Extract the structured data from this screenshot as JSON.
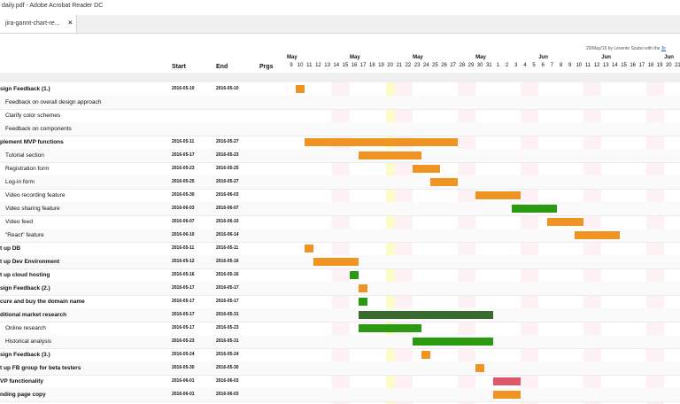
{
  "window": {
    "title": "daily.pdf - Adobe Acrobat Reader DC"
  },
  "tab": {
    "label": "jira-gannt-chart-re...",
    "close": "×"
  },
  "doc_note": {
    "text": "20/May/16 by Levente Szabo with the ",
    "link": "Jir"
  },
  "headers": {
    "start": "Start",
    "end": "End",
    "prgs": "Prgs"
  },
  "months": [
    {
      "label": "May",
      "col": 0
    },
    {
      "label": "May",
      "col": 7
    },
    {
      "label": "May",
      "col": 14
    },
    {
      "label": "May",
      "col": 21
    },
    {
      "label": "Jun",
      "col": 28
    },
    {
      "label": "Jun",
      "col": 35
    },
    {
      "label": "Jun",
      "col": 42
    }
  ],
  "days": [
    "9",
    "10",
    "11",
    "12",
    "13",
    "14",
    "15",
    "16",
    "17",
    "18",
    "19",
    "20",
    "21",
    "22",
    "23",
    "24",
    "25",
    "26",
    "27",
    "28",
    "29",
    "30",
    "31",
    "1",
    "2",
    "3",
    "4",
    "5",
    "6",
    "7",
    "8",
    "9",
    "10",
    "11",
    "12",
    "13",
    "14",
    "15",
    "16",
    "17",
    "18",
    "19",
    "20",
    "21"
  ],
  "weekend_cols": [
    5,
    6,
    12,
    13,
    19,
    20,
    26,
    27,
    33,
    34,
    40,
    41
  ],
  "today_col": 11,
  "colors": {
    "orange": "#ef9422",
    "green": "#2a9a10",
    "darkgreen": "#3a6b2e",
    "red": "#e0566a"
  },
  "tasks": [
    {
      "name": "sign Feedback (1.)",
      "bold": true,
      "start": "2016-05-10",
      "end": "2016-05-10",
      "bar_start": 1,
      "bar_len": 1,
      "color": "orange"
    },
    {
      "name": "Feedback on overall design approach",
      "bold": false,
      "indent": true,
      "start": "",
      "end": "",
      "bar_start": null,
      "bar_len": 0,
      "color": "orange"
    },
    {
      "name": "Clarify color schemes",
      "bold": false,
      "indent": true,
      "start": "",
      "end": "",
      "bar_start": null,
      "bar_len": 0,
      "color": "orange"
    },
    {
      "name": "Feedback on components",
      "bold": false,
      "indent": true,
      "start": "",
      "end": "",
      "bar_start": null,
      "bar_len": 0,
      "color": "orange"
    },
    {
      "name": "plement MVP functions",
      "bold": true,
      "start": "2016-05-11",
      "end": "2016-05-27",
      "bar_start": 2,
      "bar_len": 17,
      "color": "orange"
    },
    {
      "name": "Tutorial section",
      "bold": false,
      "indent": true,
      "start": "2016-05-17",
      "end": "2016-05-23",
      "bar_start": 8,
      "bar_len": 7,
      "color": "orange"
    },
    {
      "name": "Registration form",
      "bold": false,
      "indent": true,
      "start": "2016-05-23",
      "end": "2016-05-25",
      "bar_start": 14,
      "bar_len": 3,
      "color": "orange"
    },
    {
      "name": "Log-in form",
      "bold": false,
      "indent": true,
      "start": "2016-05-25",
      "end": "2016-05-27",
      "bar_start": 16,
      "bar_len": 3,
      "color": "orange"
    },
    {
      "name": "Video recording feature",
      "bold": false,
      "indent": true,
      "start": "2016-05-30",
      "end": "2016-06-03",
      "bar_start": 21,
      "bar_len": 5,
      "color": "orange"
    },
    {
      "name": "Video sharing feature",
      "bold": false,
      "indent": true,
      "start": "2016-06-03",
      "end": "2016-06-07",
      "bar_start": 25,
      "bar_len": 5,
      "color": "green"
    },
    {
      "name": "Video feed",
      "bold": false,
      "indent": true,
      "start": "2016-06-07",
      "end": "2016-06-10",
      "bar_start": 29,
      "bar_len": 4,
      "color": "orange"
    },
    {
      "name": "\"React\" feature",
      "bold": false,
      "indent": true,
      "start": "2016-06-10",
      "end": "2016-06-14",
      "bar_start": 32,
      "bar_len": 5,
      "color": "orange"
    },
    {
      "name": "t up DB",
      "bold": true,
      "start": "2016-05-11",
      "end": "2016-05-11",
      "bar_start": 2,
      "bar_len": 1,
      "color": "orange"
    },
    {
      "name": "t up Dev Environment",
      "bold": true,
      "start": "2016-05-12",
      "end": "2016-05-16",
      "bar_start": 3,
      "bar_len": 5,
      "color": "orange"
    },
    {
      "name": "t up cloud hosting",
      "bold": true,
      "start": "2016-05-16",
      "end": "2016-05-16",
      "bar_start": 7,
      "bar_len": 1,
      "color": "green"
    },
    {
      "name": "sign Feedback (2.)",
      "bold": true,
      "start": "2016-05-17",
      "end": "2016-05-17",
      "bar_start": 8,
      "bar_len": 1,
      "color": "orange"
    },
    {
      "name": "cure and buy the domain name",
      "bold": true,
      "start": "2016-05-17",
      "end": "2016-05-17",
      "bar_start": 8,
      "bar_len": 1,
      "color": "green"
    },
    {
      "name": "ditional market research",
      "bold": true,
      "start": "2016-05-17",
      "end": "2016-05-31",
      "bar_start": 8,
      "bar_len": 15,
      "color": "darkgreen"
    },
    {
      "name": "Online research",
      "bold": false,
      "indent": true,
      "start": "2016-05-17",
      "end": "2016-05-23",
      "bar_start": 8,
      "bar_len": 7,
      "color": "green"
    },
    {
      "name": "Historical analysis",
      "bold": false,
      "indent": true,
      "start": "2016-05-23",
      "end": "2016-05-31",
      "bar_start": 14,
      "bar_len": 9,
      "color": "green"
    },
    {
      "name": "sign Feedback (3.)",
      "bold": true,
      "start": "2016-05-24",
      "end": "2016-05-24",
      "bar_start": 15,
      "bar_len": 1,
      "color": "orange"
    },
    {
      "name": "t up FB group for beta testers",
      "bold": true,
      "start": "2016-05-30",
      "end": "2016-05-30",
      "bar_start": 21,
      "bar_len": 1,
      "color": "orange"
    },
    {
      "name": "VP functionality",
      "bold": true,
      "start": "2016-06-01",
      "end": "2016-06-03",
      "bar_start": 23,
      "bar_len": 3,
      "color": "red"
    },
    {
      "name": "nding page copy",
      "bold": true,
      "start": "2016-06-01",
      "end": "2016-06-03",
      "bar_start": 23,
      "bar_len": 3,
      "color": "orange"
    }
  ]
}
